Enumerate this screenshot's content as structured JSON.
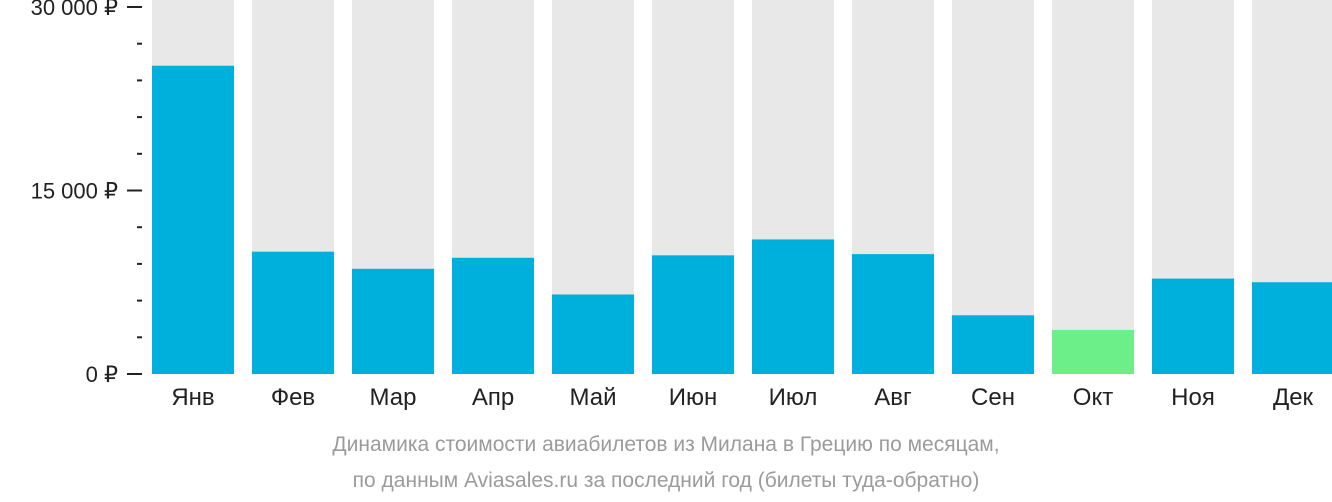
{
  "chart_data": {
    "type": "bar",
    "categories": [
      "Янв",
      "Фев",
      "Мар",
      "Апр",
      "Май",
      "Июн",
      "Июл",
      "Авг",
      "Сен",
      "Окт",
      "Ноя",
      "Дек"
    ],
    "values": [
      25200,
      10000,
      8600,
      9500,
      6500,
      9700,
      11000,
      9800,
      4800,
      3600,
      7800,
      7500
    ],
    "ylim": [
      0,
      30000
    ],
    "yticks": [
      {
        "value": 0,
        "label": "0 ₽"
      },
      {
        "value": 15000,
        "label": "15 000 ₽"
      },
      {
        "value": 30000,
        "label": "30 000 ₽"
      }
    ],
    "minor_tick_step": 3000,
    "highlight_index": 9,
    "grid": false,
    "legend": "none",
    "colors": {
      "bar": "#00b0dc",
      "highlight": "#6cef89",
      "track": "#e8e8e8",
      "axis": "#222222"
    }
  },
  "caption": {
    "line1": "Динамика стоимости авиабилетов из Милана в Грецию по месяцам,",
    "line2": "по данным Aviasales.ru за последний год (билеты туда-обратно)"
  }
}
